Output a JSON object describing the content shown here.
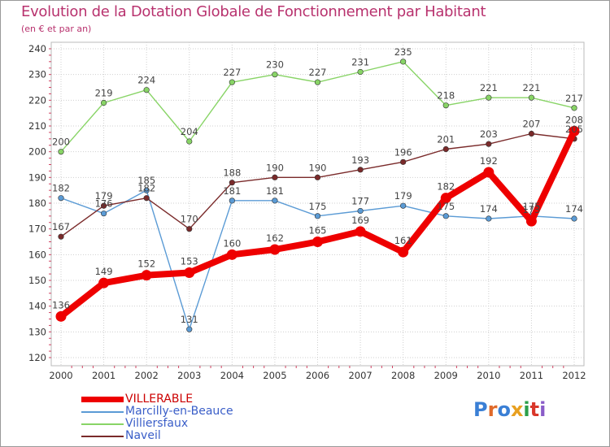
{
  "header": {
    "title": "Evolution de la Dotation Globale de Fonctionnement par Habitant",
    "subtitle": "(en € et par an)"
  },
  "brand": {
    "text": "Proxiti",
    "letters": [
      "P",
      "r",
      "o",
      "x",
      "i",
      "t",
      "i"
    ],
    "colors": [
      "#3a7fd5",
      "#e06a2a",
      "#3a7fd5",
      "#e8a020",
      "#2c9f4a",
      "#d9372a",
      "#8a5cc8"
    ]
  },
  "chart_data": {
    "type": "line",
    "title": "Evolution de la Dotation Globale de Fonctionnement par Habitant",
    "subtitle": "(en € et par an)",
    "x": [
      "2000",
      "2001",
      "2002",
      "2003",
      "2004",
      "2005",
      "2006",
      "2007",
      "2008",
      "2009",
      "2010",
      "2011",
      "2012"
    ],
    "ylim": [
      120,
      240
    ],
    "yticks": [
      120,
      130,
      140,
      150,
      160,
      170,
      180,
      190,
      200,
      210,
      220,
      230,
      240
    ],
    "grid": true,
    "legend_position": "bottom-left",
    "series": [
      {
        "name": "VILLERABLE",
        "color": "#ee0000",
        "labelColor": "#ee0000",
        "emphasis": true,
        "values": [
          136,
          149,
          152,
          153,
          160,
          162,
          165,
          169,
          161,
          182,
          192,
          173,
          208
        ],
        "labels": [
          "136",
          "149",
          "152",
          "153",
          "160",
          "162",
          "165",
          "169",
          "161",
          "182",
          "192",
          "173",
          "208"
        ]
      },
      {
        "name": "Marcilly-en-Beauce",
        "color": "#5b9bd5",
        "labelColor": "#3a6fb0",
        "emphasis": false,
        "values": [
          182,
          176,
          185,
          131,
          181,
          181,
          175,
          177,
          179,
          175,
          174,
          175,
          174
        ],
        "labels": [
          "182",
          "176",
          "185",
          "131",
          "181",
          "181",
          "175",
          "177",
          "179",
          "175",
          "174",
          "175",
          "174"
        ]
      },
      {
        "name": "Villiersfaux",
        "color": "#88d466",
        "labelColor": "#5fae3a",
        "emphasis": false,
        "values": [
          200,
          219,
          224,
          204,
          227,
          230,
          227,
          231,
          235,
          218,
          221,
          221,
          217
        ],
        "labels": [
          "200",
          "219",
          "224",
          "204",
          "227",
          "230",
          "227",
          "231",
          "235",
          "218",
          "221",
          "221",
          "217"
        ]
      },
      {
        "name": "Naveil",
        "color": "#7a2a2a",
        "labelColor": "#7a2a2a",
        "emphasis": false,
        "values": [
          167,
          179,
          182,
          170,
          188,
          190,
          190,
          193,
          196,
          201,
          203,
          207,
          205
        ],
        "labels": [
          "167",
          "179",
          "182",
          "170",
          "188",
          "190",
          "190",
          "193",
          "196",
          "201",
          "203",
          "207",
          "205"
        ]
      }
    ]
  }
}
